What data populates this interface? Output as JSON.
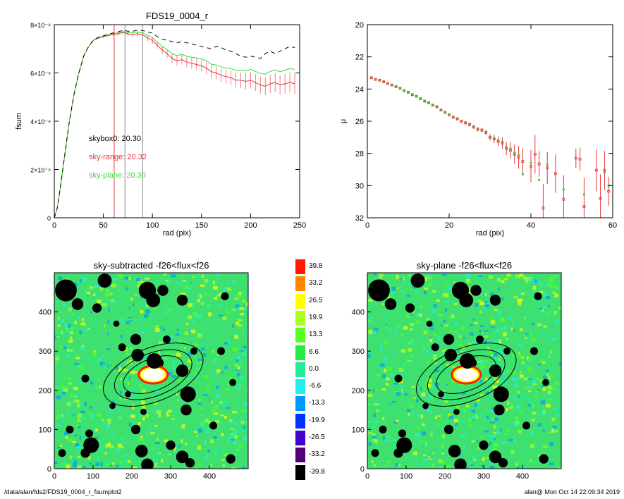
{
  "footer": {
    "path": "/data/alan/fds2/FDS19_0004_r_fsumplot2",
    "stamp": "alan@  Mon Oct 14 22:09:34 2019"
  },
  "chart_data": [
    {
      "type": "line",
      "title": "FDS19_0004_r",
      "xlabel": "rad (pix)",
      "ylabel": "fsum",
      "xlim": [
        0,
        250
      ],
      "ylim": [
        0,
        8e-09
      ],
      "x_ticks": [
        "0",
        "50",
        "100",
        "150",
        "200",
        "250"
      ],
      "y_ticks": [
        "0",
        "2×10⁻⁹",
        "4×10⁻⁹",
        "6×10⁻⁹",
        "8×10⁻⁹"
      ],
      "vlines": [
        {
          "x": 61,
          "color": "#e8333a"
        },
        {
          "x": 72,
          "color": "#888888"
        },
        {
          "x": 90,
          "color": "#888888"
        }
      ],
      "annotations": [
        {
          "text": "skybox0: 20.30",
          "color": "#000000"
        },
        {
          "text": "sky-range: 20.32",
          "color": "#e8333a"
        },
        {
          "text": "sky-plane: 20.30",
          "color": "#33dd33"
        }
      ],
      "series": [
        {
          "color": "#e8333a",
          "x": [
            0,
            3,
            6,
            10,
            15,
            20,
            25,
            30,
            35,
            40,
            45,
            50,
            55,
            60,
            65,
            70,
            75,
            80,
            85,
            90,
            95,
            100,
            105,
            110,
            115,
            120,
            125,
            130,
            135,
            140,
            145,
            150,
            155,
            160,
            165,
            170,
            175,
            180,
            185,
            190,
            195,
            200,
            205,
            210,
            215,
            220,
            225,
            230,
            235,
            240,
            245
          ],
          "y": [
            0,
            0.4,
            1.2,
            2.4,
            3.9,
            5.1,
            6.0,
            6.7,
            7.1,
            7.35,
            7.45,
            7.5,
            7.55,
            7.6,
            7.62,
            7.68,
            7.62,
            7.6,
            7.62,
            7.58,
            7.45,
            7.35,
            7.15,
            6.95,
            6.8,
            6.6,
            6.5,
            6.55,
            6.45,
            6.4,
            6.35,
            6.3,
            6.2,
            6.05,
            6.0,
            5.9,
            5.85,
            5.8,
            5.7,
            5.7,
            5.65,
            5.7,
            5.6,
            5.5,
            5.45,
            5.55,
            5.6,
            5.5,
            5.55,
            5.6,
            5.55
          ],
          "err": [
            0,
            0,
            0,
            0,
            0,
            0,
            0,
            0,
            0.02,
            0.03,
            0.04,
            0.05,
            0.06,
            0.07,
            0.08,
            0.09,
            0.1,
            0.1,
            0.11,
            0.12,
            0.13,
            0.14,
            0.15,
            0.16,
            0.17,
            0.18,
            0.19,
            0.2,
            0.21,
            0.22,
            0.23,
            0.24,
            0.25,
            0.26,
            0.27,
            0.28,
            0.29,
            0.3,
            0.31,
            0.32,
            0.33,
            0.34,
            0.35,
            0.36,
            0.37,
            0.38,
            0.39,
            0.4,
            0.41,
            0.42,
            0.43
          ]
        },
        {
          "color": "#33dd33",
          "x": [
            0,
            3,
            6,
            10,
            15,
            20,
            25,
            30,
            35,
            40,
            45,
            50,
            55,
            60,
            65,
            70,
            75,
            80,
            85,
            90,
            95,
            100,
            105,
            110,
            115,
            120,
            125,
            130,
            135,
            140,
            145,
            150,
            155,
            160,
            165,
            170,
            175,
            180,
            185,
            190,
            195,
            200,
            205,
            210,
            215,
            220,
            225,
            230,
            235,
            240,
            245
          ],
          "y": [
            0,
            0.4,
            1.2,
            2.4,
            3.9,
            5.1,
            6.0,
            6.7,
            7.1,
            7.36,
            7.47,
            7.52,
            7.58,
            7.63,
            7.66,
            7.72,
            7.67,
            7.66,
            7.69,
            7.66,
            7.55,
            7.46,
            7.28,
            7.1,
            6.97,
            6.8,
            6.72,
            6.77,
            6.69,
            6.65,
            6.62,
            6.58,
            6.5,
            6.36,
            6.33,
            6.25,
            6.21,
            6.18,
            6.1,
            6.11,
            6.08,
            6.15,
            6.06,
            5.98,
            5.95,
            6.06,
            6.13,
            6.05,
            6.12,
            6.18,
            6.15
          ]
        },
        {
          "color": "#000000",
          "dash": true,
          "x": [
            0,
            3,
            6,
            10,
            15,
            20,
            25,
            30,
            35,
            40,
            45,
            50,
            55,
            60,
            65,
            70,
            75,
            80,
            85,
            90,
            95,
            100,
            105,
            110,
            115,
            120,
            125,
            130,
            135,
            140,
            145,
            150,
            155,
            160,
            165,
            170,
            175,
            180,
            185,
            190,
            195,
            200,
            205,
            210,
            215,
            220,
            225,
            230,
            235,
            240,
            245
          ],
          "y": [
            0,
            0.4,
            1.2,
            2.4,
            3.9,
            5.1,
            6.0,
            6.7,
            7.1,
            7.37,
            7.48,
            7.54,
            7.6,
            7.66,
            7.7,
            7.77,
            7.73,
            7.73,
            7.77,
            7.76,
            7.7,
            7.65,
            7.5,
            7.4,
            7.35,
            7.3,
            7.25,
            7.3,
            7.25,
            7.2,
            7.15,
            7.1,
            7.05,
            7.0,
            7.1,
            7.05,
            6.95,
            6.9,
            6.8,
            6.7,
            6.65,
            6.7,
            6.65,
            6.6,
            6.8,
            6.9,
            6.8,
            6.9,
            7.0,
            7.1,
            7.05
          ]
        }
      ]
    },
    {
      "type": "scatter",
      "xlabel": "rad (pix)",
      "ylabel": "μ",
      "xlim": [
        0,
        60
      ],
      "ylim": [
        32,
        20
      ],
      "x_ticks": [
        "0",
        "20",
        "40",
        "60"
      ],
      "y_ticks": [
        "20",
        "22",
        "24",
        "26",
        "28",
        "30",
        "32"
      ],
      "series": [
        {
          "color": "#e8333a",
          "x": [
            1,
            2,
            3,
            4,
            5,
            6,
            7,
            8,
            9,
            10,
            11,
            12,
            13,
            14,
            15,
            16,
            17,
            18,
            19,
            20,
            21,
            22,
            23,
            24,
            25,
            26,
            27,
            28,
            29,
            30,
            31,
            32,
            33,
            34,
            35,
            36,
            37,
            38,
            40,
            41,
            42,
            43,
            44,
            46,
            48,
            51,
            52,
            53,
            56,
            57,
            58,
            59
          ],
          "y": [
            23.3,
            23.4,
            23.45,
            23.55,
            23.65,
            23.75,
            23.85,
            23.95,
            24.1,
            24.2,
            24.35,
            24.45,
            24.6,
            24.75,
            24.85,
            25.0,
            25.1,
            25.3,
            25.45,
            25.6,
            25.75,
            25.85,
            26.0,
            26.1,
            26.2,
            26.35,
            26.5,
            26.55,
            26.7,
            27.0,
            27.1,
            27.25,
            27.35,
            27.7,
            27.8,
            28.05,
            28.25,
            28.5,
            28.8,
            28.05,
            28.65,
            31.4,
            28.9,
            29.25,
            30.85,
            28.3,
            28.35,
            31.3,
            29.05,
            30.8,
            29.05,
            30.35
          ],
          "err": [
            0.02,
            0.02,
            0.02,
            0.02,
            0.02,
            0.03,
            0.03,
            0.03,
            0.03,
            0.04,
            0.04,
            0.04,
            0.05,
            0.05,
            0.05,
            0.06,
            0.06,
            0.07,
            0.07,
            0.08,
            0.09,
            0.1,
            0.1,
            0.11,
            0.12,
            0.13,
            0.14,
            0.15,
            0.16,
            0.2,
            0.25,
            0.3,
            0.35,
            0.4,
            0.5,
            0.6,
            0.7,
            0.8,
            1.0,
            1.2,
            0.8,
            1.5,
            1.0,
            1.2,
            1.5,
            0.6,
            0.7,
            1.8,
            1.3,
            1.5,
            1.2,
            0.9
          ]
        },
        {
          "color": "#33dd33",
          "x": [
            1,
            2,
            3,
            4,
            5,
            6,
            7,
            8,
            9,
            10,
            11,
            12,
            13,
            14,
            15,
            16,
            17,
            18,
            19,
            20,
            21,
            22,
            23,
            24,
            25,
            26,
            27,
            28,
            29,
            30,
            31,
            32,
            33,
            34,
            35,
            36,
            37,
            38,
            40,
            42,
            44,
            48,
            53,
            58,
            59
          ],
          "y": [
            23.3,
            23.4,
            23.45,
            23.55,
            23.65,
            23.75,
            23.85,
            23.95,
            24.1,
            24.2,
            24.35,
            24.45,
            24.6,
            24.75,
            24.85,
            25.0,
            25.1,
            25.3,
            25.45,
            25.6,
            25.75,
            25.85,
            26.0,
            26.1,
            26.2,
            26.35,
            26.5,
            26.55,
            26.7,
            27.0,
            27.1,
            27.2,
            27.3,
            27.6,
            27.7,
            27.95,
            28.1,
            29.3,
            28.6,
            29.65,
            28.7,
            30.25,
            30.55,
            29.2,
            30.0
          ]
        }
      ]
    },
    {
      "type": "heatmap",
      "title": "sky-subtracted -f26<flux<f26",
      "xlim": [
        0,
        500
      ],
      "ylim": [
        0,
        500
      ],
      "x_ticks": [
        "0",
        "100",
        "200",
        "300",
        "400"
      ],
      "y_ticks": [
        "0",
        "100",
        "200",
        "300",
        "400"
      ]
    },
    {
      "type": "heatmap",
      "title": "sky-plane -f26<flux<f26",
      "xlim": [
        0,
        500
      ],
      "ylim": [
        0,
        500
      ],
      "x_ticks": [
        "0",
        "100",
        "200",
        "300",
        "400"
      ],
      "y_ticks": [
        "0",
        "100",
        "200",
        "300",
        "400"
      ]
    },
    {
      "type": "colorbar",
      "levels": [
        "39.8",
        "33.2",
        "26.5",
        "19.9",
        "13.3",
        "6.6",
        "0.0",
        "-6.6",
        "-13.3",
        "-19.9",
        "-26.5",
        "-33.2",
        "-39.8"
      ],
      "colors": [
        "#ff1a00",
        "#ff8800",
        "#ffff00",
        "#aaff22",
        "#55ff22",
        "#22ee44",
        "#22ee99",
        "#22eeee",
        "#0099ff",
        "#0033ff",
        "#4400cc",
        "#550077",
        "#000000"
      ]
    }
  ]
}
